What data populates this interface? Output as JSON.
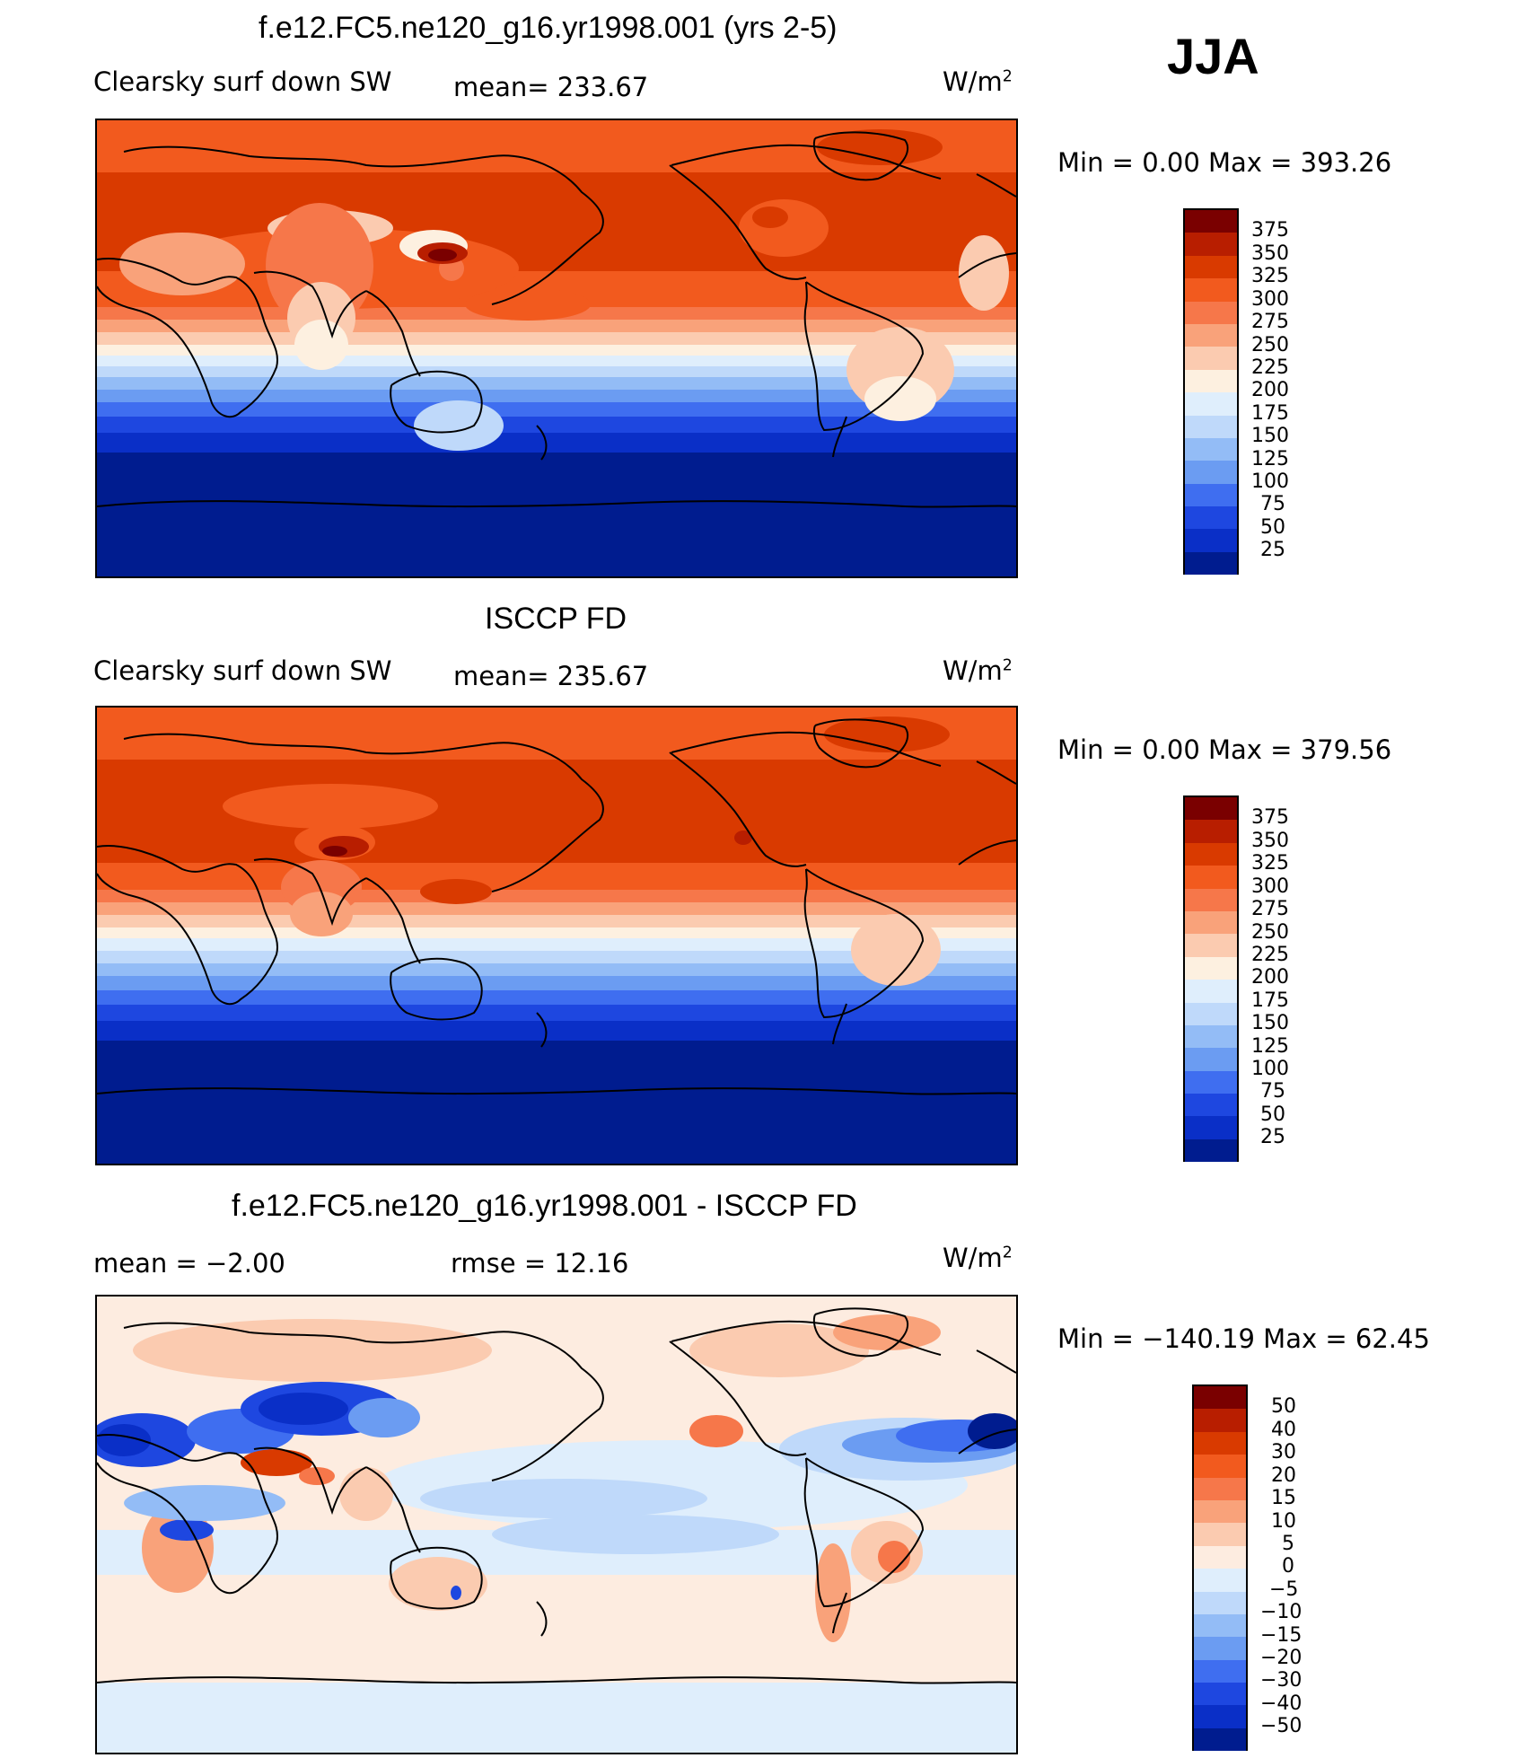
{
  "season": "JJA",
  "panels": [
    {
      "title": "f.e12.FC5.ne120_g16.yr1998.001 (yrs 2-5)",
      "variable": "Clearsky surf down SW",
      "stat": "mean= 233.67",
      "units": "W/m",
      "units_exp": "2",
      "minmax": "Min =     0.00 Max  =  393.26",
      "levels": [
        "375",
        "350",
        "325",
        "300",
        "275",
        "250",
        "225",
        "200",
        "175",
        "150",
        "125",
        "100",
        "75",
        "50",
        "25"
      ]
    },
    {
      "title": "ISCCP FD",
      "variable": "Clearsky surf down SW",
      "stat": "mean= 235.67",
      "units": "W/m",
      "units_exp": "2",
      "minmax": "Min =     0.00 Max  =  379.56",
      "levels": [
        "375",
        "350",
        "325",
        "300",
        "275",
        "250",
        "225",
        "200",
        "175",
        "150",
        "125",
        "100",
        "75",
        "50",
        "25"
      ]
    },
    {
      "title": "f.e12.FC5.ne120_g16.yr1998.001 - ISCCP FD",
      "stat_mean": "mean =    −2.00",
      "stat_rmse": "rmse =    12.16",
      "units": "W/m",
      "units_exp": "2",
      "minmax": "Min  = −140.19 Max =    62.45",
      "levels": [
        "50",
        "40",
        "30",
        "20",
        "15",
        "10",
        "5",
        "0",
        "−5",
        "−10",
        "−15",
        "−20",
        "−30",
        "−40",
        "−50"
      ]
    }
  ],
  "colors": {
    "absolute": [
      "#7a0000",
      "#b81e00",
      "#d93a00",
      "#f25a1e",
      "#f6774a",
      "#f9a27a",
      "#fbcbb0",
      "#fdf0e0",
      "#dfeefc",
      "#bfd9fa",
      "#93bcf6",
      "#6b9cf2",
      "#3f6ef0",
      "#1e47e0",
      "#0a2fc7",
      "#001c8f"
    ],
    "difference": [
      "#7a0000",
      "#b81e00",
      "#d93a00",
      "#f25a1e",
      "#f6774a",
      "#f9a27a",
      "#fbcbb0",
      "#fdece0",
      "#dfeefc",
      "#bfd9fa",
      "#93bcf6",
      "#6b9cf2",
      "#3f6ef0",
      "#1e47e0",
      "#0a2fc7",
      "#001c8f"
    ]
  }
}
